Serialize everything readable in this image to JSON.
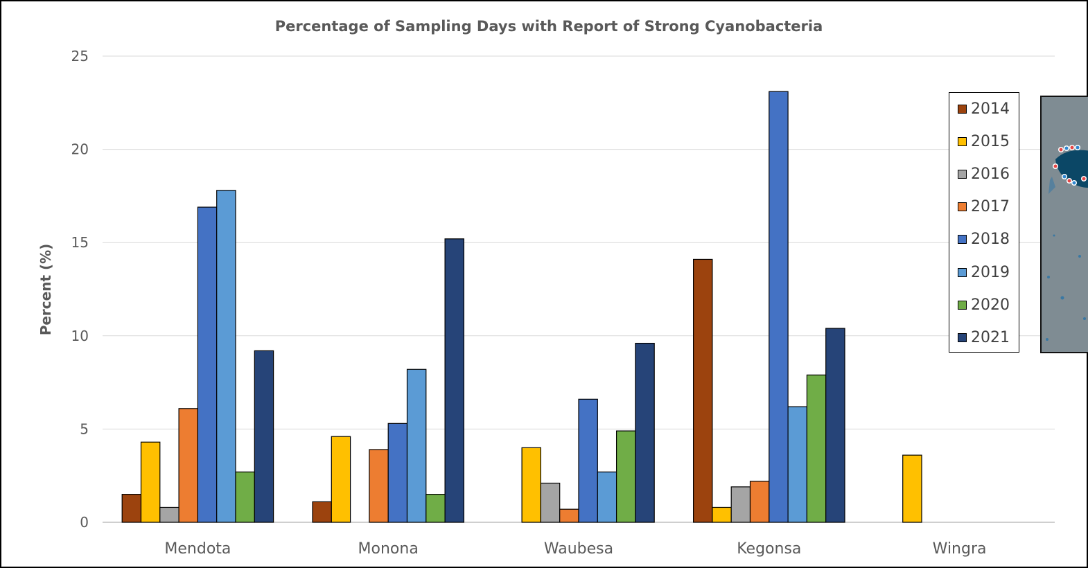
{
  "chart_data": {
    "type": "bar",
    "title": "Percentage of Sampling Days with Report of Strong Cyanobacteria",
    "xlabel": "",
    "ylabel": "Percent (%)",
    "ylim": [
      0,
      25
    ],
    "yticks": [
      0,
      5,
      10,
      15,
      20,
      25
    ],
    "grid": "horizontal",
    "legend_position": "right",
    "categories": [
      "Mendota",
      "Monona",
      "Waubesa",
      "Kegonsa",
      "Wingra"
    ],
    "series": [
      {
        "name": "2014",
        "color": "#9c430e",
        "values": [
          1.5,
          1.1,
          0,
          14.1,
          0
        ]
      },
      {
        "name": "2015",
        "color": "#ffc000",
        "values": [
          4.3,
          4.6,
          4.0,
          0.8,
          3.6
        ]
      },
      {
        "name": "2016",
        "color": "#a5a5a5",
        "values": [
          0.8,
          0,
          2.1,
          1.9,
          0
        ]
      },
      {
        "name": "2017",
        "color": "#ed7d31",
        "values": [
          6.1,
          3.9,
          0.7,
          2.2,
          0
        ]
      },
      {
        "name": "2018",
        "color": "#4472c4",
        "values": [
          16.9,
          5.3,
          6.6,
          23.1,
          0
        ]
      },
      {
        "name": "2019",
        "color": "#5b9bd5",
        "values": [
          17.8,
          8.2,
          2.7,
          6.2,
          0
        ]
      },
      {
        "name": "2020",
        "color": "#70ad47",
        "values": [
          2.7,
          1.5,
          4.9,
          7.9,
          0
        ]
      },
      {
        "name": "2021",
        "color": "#264478",
        "values": [
          9.2,
          15.2,
          9.6,
          10.4,
          0
        ]
      }
    ]
  },
  "inset_map": {
    "icon": "lake-map-thumbnail",
    "pin_icon": "map-pin-icon"
  }
}
